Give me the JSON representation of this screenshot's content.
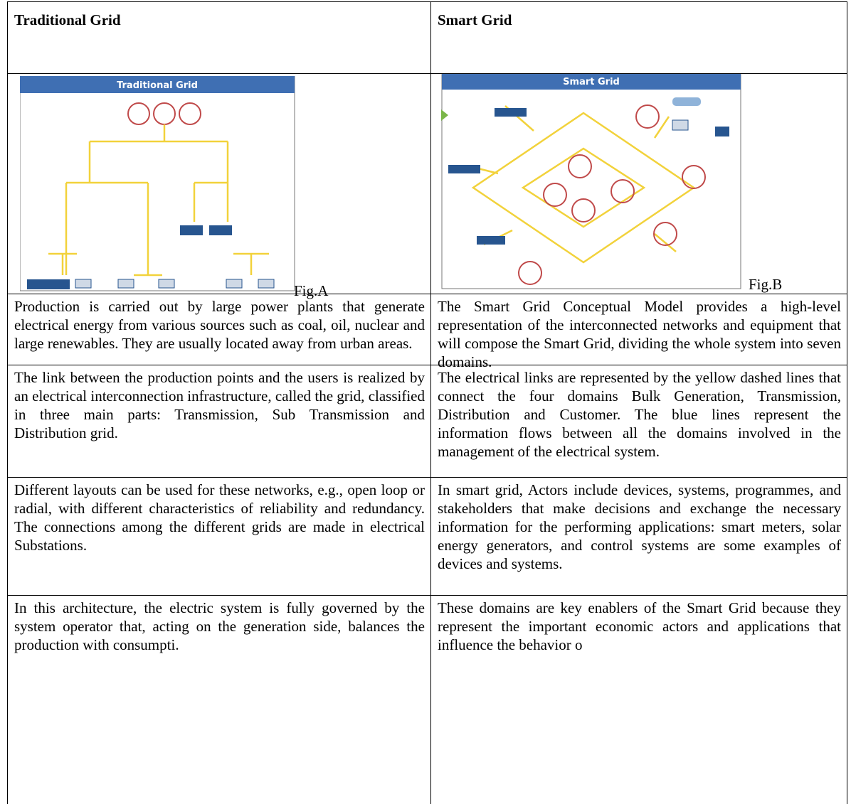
{
  "header": {
    "left": "Traditional Grid",
    "right": "Smart Grid"
  },
  "figures": [
    {
      "title": "Traditional Grid",
      "caption": "Fig.A"
    },
    {
      "title": "Smart Grid",
      "caption": "Fig.B"
    }
  ],
  "rows": [
    [
      "Production is carried out by large power plants that generate electrical energy from various sources such as coal, oil, nuclear and large renewables. They are usually located away from urban areas.",
      "The Smart Grid Conceptual Model provides a high-level representation of the interconnected networks and equipment that will compose the Smart Grid, dividing the whole system into seven domains."
    ],
    [
      "The link between the production points and the users is realized by an electrical interconnection infrastructure, called the grid, classified in three main parts: Transmission, Sub Transmission and Distribution grid.",
      "The electrical links are represented by the yellow dashed lines that connect the four domains Bulk Generation, Transmission, Distribution and Customer. The blue lines represent the information flows between all the domains involved in the management of the electrical system."
    ],
    [
      "Different layouts can be used for these networks, e.g., open loop or radial, with different characteristics of reliability and redundancy. The connections among the different grids are made in electrical Substations.",
      "In smart grid, Actors include devices, systems, programmes, and stakeholders that make decisions and exchange the necessary information for the performing applications: smart meters, solar energy generators, and control systems are some examples of devices and systems."
    ],
    [
      "In this architecture, the electric system is fully governed by the system operator that, acting on the generation side, balances the production with consumpti.",
      "These domains are key enablers of the Smart Grid because they represent the important economic actors and applications that influence the behavior o"
    ]
  ]
}
